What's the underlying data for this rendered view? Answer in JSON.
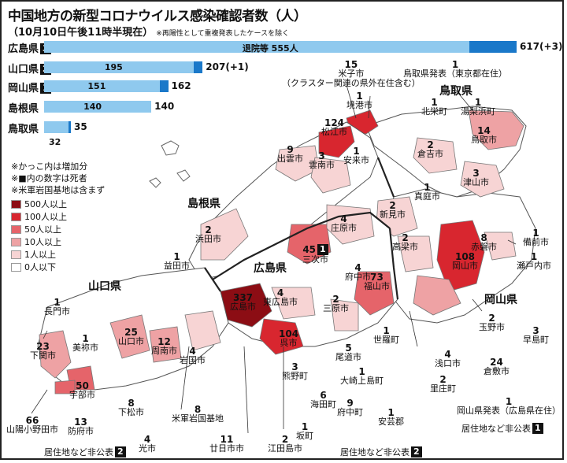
{
  "title": "中国地方の新型コロナウイルス感染確認者数（人）",
  "subtitle": "（10月10日午後11時半現在）",
  "subtitle_note": "※再陽性として重複発表したケースを除く",
  "colors": {
    "bar_light": "#8fc9ee",
    "bar_dark": "#1a78c9",
    "c500": "#8c0d14",
    "c100": "#d8262f",
    "c50": "#e5646a",
    "c10": "#eea2a4",
    "c1": "#f7d4d4",
    "c0": "#ffffff"
  },
  "bars": [
    {
      "pref": "広島県",
      "deaths": "3",
      "inbar": "退院等",
      "inbar_val": "555人",
      "total": "617",
      "delta": "(+3)"
    },
    {
      "pref": "山口県",
      "deaths": "2",
      "inbar": "",
      "inbar_val": "195",
      "total": "207",
      "delta": "(+1)"
    },
    {
      "pref": "岡山県",
      "deaths": "1",
      "inbar": "",
      "inbar_val": "151",
      "total": "162",
      "delta": ""
    },
    {
      "pref": "島根県",
      "deaths": "",
      "inbar": "",
      "inbar_val": "140",
      "total": "140",
      "delta": ""
    },
    {
      "pref": "鳥取県",
      "deaths": "",
      "inbar": "",
      "inbar_val": "32",
      "total": "35",
      "delta": ""
    }
  ],
  "notes": [
    "※かっこ内は増加分",
    "※■内の数字は死者",
    "※米軍岩国基地は含まず"
  ],
  "legend": [
    "500人以上",
    "100人以上",
    "50人以上",
    "10人以上",
    "1人以上",
    "0人以下"
  ],
  "prefecture_labels": {
    "shimane": "島根県",
    "tottori": "鳥取県",
    "hiroshima": "広島県",
    "yamaguchi": "山口県",
    "okayama": "岡山県"
  },
  "places": [
    {
      "id": "yonago",
      "num": "15",
      "name": "米子市",
      "sub": "（クラスター関連の県外在住含む）"
    },
    {
      "id": "tottori-tokyo",
      "num": "1",
      "name": "鳥取県発表（東京都在住）"
    },
    {
      "id": "sakaiminato",
      "num": "1",
      "name": "境港市"
    },
    {
      "id": "hokuei",
      "num": "1",
      "name": "北栄町"
    },
    {
      "id": "yurihama",
      "num": "1",
      "name": "湯梨浜町"
    },
    {
      "id": "matsue",
      "num": "124",
      "name": "松江市"
    },
    {
      "id": "tottori-city",
      "num": "14",
      "name": "鳥取市"
    },
    {
      "id": "izumo",
      "num": "9",
      "name": "出雲市"
    },
    {
      "id": "unnan",
      "num": "3",
      "name": "雲南市"
    },
    {
      "id": "yasugi",
      "num": "1",
      "name": "安来市"
    },
    {
      "id": "kurayoshi",
      "num": "2",
      "name": "倉吉市"
    },
    {
      "id": "tsuyama",
      "num": "3",
      "name": "津山市"
    },
    {
      "id": "maniwa",
      "num": "1",
      "name": "真庭市"
    },
    {
      "id": "niimi",
      "num": "2",
      "name": "新見市"
    },
    {
      "id": "shobara",
      "num": "4",
      "name": "庄原市"
    },
    {
      "id": "hamada",
      "num": "2",
      "name": "浜田市"
    },
    {
      "id": "miyoshi",
      "num": "45",
      "deaths": "1",
      "name": "三次市"
    },
    {
      "id": "takahashi",
      "num": "2",
      "name": "高梁市"
    },
    {
      "id": "akaiwa",
      "num": "8",
      "name": "赤磐市"
    },
    {
      "id": "bizen",
      "num": "1",
      "name": "備前市"
    },
    {
      "id": "okayama-city",
      "num": "108",
      "name": "岡山市"
    },
    {
      "id": "setouchi",
      "num": "1",
      "name": "瀬戸内市"
    },
    {
      "id": "masuda",
      "num": "1",
      "name": "益田市"
    },
    {
      "id": "fuchu",
      "num": "4",
      "name": "府中市"
    },
    {
      "id": "fukuyama",
      "num": "73",
      "name": "福山市"
    },
    {
      "id": "hiroshima-city",
      "num": "337",
      "name": "広島市"
    },
    {
      "id": "higashihiroshima",
      "num": "4",
      "name": "東広島市"
    },
    {
      "id": "mihara",
      "num": "2",
      "name": "三原市"
    },
    {
      "id": "nagato",
      "num": "1",
      "name": "長門市"
    },
    {
      "id": "mine",
      "num": "1",
      "name": "美祢市"
    },
    {
      "id": "yamaguchi-city",
      "num": "25",
      "name": "山口市"
    },
    {
      "id": "shunan",
      "num": "12",
      "name": "周南市"
    },
    {
      "id": "iwakuni",
      "num": "4",
      "name": "岩国市"
    },
    {
      "id": "kure",
      "num": "104",
      "name": "呉市"
    },
    {
      "id": "sera",
      "num": "1",
      "name": "世羅町"
    },
    {
      "id": "onomichi",
      "num": "5",
      "name": "尾道市"
    },
    {
      "id": "tamano",
      "num": "2",
      "name": "玉野市"
    },
    {
      "id": "hayashima",
      "num": "3",
      "name": "早島町"
    },
    {
      "id": "shimonoseki",
      "num": "23",
      "name": "下関市"
    },
    {
      "id": "asakuchi",
      "num": "4",
      "name": "浅口市"
    },
    {
      "id": "kurashiki",
      "num": "24",
      "name": "倉敷市"
    },
    {
      "id": "kumano",
      "num": "3",
      "name": "熊野町"
    },
    {
      "id": "osakikamijima",
      "num": "1",
      "name": "大崎上島町"
    },
    {
      "id": "satosho",
      "num": "2",
      "name": "里庄町"
    },
    {
      "id": "ube",
      "num": "50",
      "name": "宇部市"
    },
    {
      "id": "kaita",
      "num": "6",
      "name": "海田町"
    },
    {
      "id": "kudamatsu",
      "num": "8",
      "name": "下松市"
    },
    {
      "id": "fuchu-town",
      "num": "9",
      "name": "府中町"
    },
    {
      "id": "akiota",
      "num": "1",
      "name": "安芸郡"
    },
    {
      "id": "sanyoonoda",
      "num": "66",
      "name": "山陽小野田市"
    },
    {
      "id": "hofu",
      "num": "13",
      "name": "防府市"
    },
    {
      "id": "iwakuni-base",
      "num": "8",
      "name": "米軍岩国基地"
    },
    {
      "id": "saka",
      "num": "1",
      "name": "坂町"
    },
    {
      "id": "okayama-hiroshima",
      "num": "1",
      "name": "岡山県発表（広島県在住）"
    },
    {
      "id": "hikari",
      "num": "4",
      "name": "光市"
    },
    {
      "id": "hatsukaichi",
      "num": "11",
      "name": "廿日市市"
    },
    {
      "id": "etajima",
      "num": "2",
      "name": "江田島市"
    }
  ],
  "unknown_labels": [
    {
      "id": "yamaguchi-unk",
      "text": "居住地など非公表",
      "deaths": "2"
    },
    {
      "id": "hiroshima-unk",
      "text": "居住地など非公表",
      "deaths": "2"
    },
    {
      "id": "okayama-unk",
      "text": "居住地など非公表",
      "deaths": "1"
    }
  ]
}
